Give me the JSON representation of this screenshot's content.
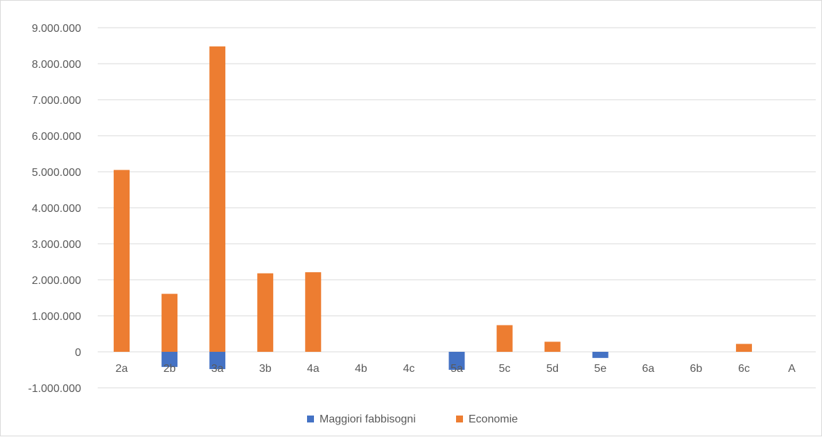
{
  "chart_data": {
    "type": "bar",
    "categories": [
      "2a",
      "2b",
      "3a",
      "3b",
      "4a",
      "4b",
      "4c",
      "5a",
      "5c",
      "5d",
      "5e",
      "6a",
      "6b",
      "6c",
      "A"
    ],
    "series": [
      {
        "name": "Maggiori fabbisogni",
        "color": "#4472c4",
        "values": [
          0,
          -420000,
          -480000,
          0,
          0,
          0,
          0,
          -500000,
          0,
          0,
          -170000,
          0,
          0,
          0,
          0
        ]
      },
      {
        "name": "Economie",
        "color": "#ed7d31",
        "values": [
          5050000,
          1610000,
          8480000,
          2180000,
          2210000,
          0,
          0,
          0,
          740000,
          280000,
          0,
          0,
          0,
          220000,
          0
        ]
      }
    ],
    "ylim": [
      -1000000,
      9000000
    ],
    "yticks": [
      9000000,
      8000000,
      7000000,
      6000000,
      5000000,
      4000000,
      3000000,
      2000000,
      1000000,
      0,
      -1000000
    ],
    "ytick_labels": [
      "9.000.000",
      "8.000.000",
      "7.000.000",
      "6.000.000",
      "5.000.000",
      "4.000.000",
      "3.000.000",
      "2.000.000",
      "1.000.000",
      "0",
      "-1.000.000"
    ],
    "negative_label_color": "#c00000",
    "grid": true,
    "legend_position": "bottom"
  }
}
